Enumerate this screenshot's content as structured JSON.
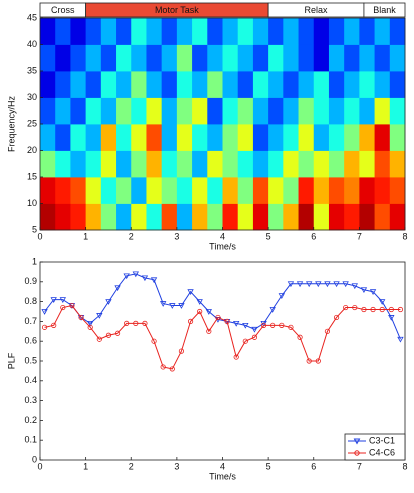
{
  "chart_data": [
    {
      "type": "heatmap",
      "xlabel": "Time/s",
      "ylabel": "Frequency/Hz",
      "xlim": [
        0,
        8
      ],
      "ylim": [
        5,
        45
      ],
      "xticks": [
        0,
        1,
        2,
        3,
        4,
        5,
        6,
        7,
        8
      ],
      "yticks": [
        5,
        10,
        15,
        20,
        25,
        30,
        35,
        40,
        45
      ],
      "segments": [
        {
          "label": "Cross",
          "start": 0,
          "end": 1,
          "color": "#ffffff"
        },
        {
          "label": "Motor Task",
          "start": 1,
          "end": 5,
          "color": "#ea4a33"
        },
        {
          "label": "Relax",
          "start": 5,
          "end": 7.1,
          "color": "#ffffff"
        },
        {
          "label": "Blank",
          "start": 7.1,
          "end": 8,
          "color": "#ffffff"
        }
      ],
      "z": [
        [
          0.95,
          0.9,
          0.85,
          0.7,
          0.5,
          0.3,
          0.6,
          0.4,
          0.8,
          0.3,
          0.7,
          0.5,
          0.85,
          0.6,
          0.9,
          0.5,
          0.7,
          0.95,
          0.6,
          0.9,
          0.85,
          0.95,
          0.8,
          0.9
        ],
        [
          0.9,
          0.85,
          0.8,
          0.6,
          0.4,
          0.5,
          0.3,
          0.6,
          0.5,
          0.4,
          0.6,
          0.4,
          0.7,
          0.5,
          0.8,
          0.6,
          0.5,
          0.85,
          0.7,
          0.8,
          0.75,
          0.9,
          0.85,
          0.8
        ],
        [
          0.5,
          0.4,
          0.3,
          0.4,
          0.6,
          0.3,
          0.5,
          0.7,
          0.4,
          0.5,
          0.3,
          0.6,
          0.5,
          0.4,
          0.3,
          0.4,
          0.6,
          0.5,
          0.6,
          0.5,
          0.7,
          0.6,
          0.8,
          0.7
        ],
        [
          0.3,
          0.2,
          0.4,
          0.3,
          0.7,
          0.4,
          0.6,
          0.8,
          0.3,
          0.6,
          0.4,
          0.3,
          0.5,
          0.6,
          0.2,
          0.3,
          0.4,
          0.6,
          0.3,
          0.4,
          0.5,
          0.7,
          0.9,
          0.5
        ],
        [
          0.2,
          0.3,
          0.2,
          0.4,
          0.3,
          0.5,
          0.4,
          0.6,
          0.3,
          0.5,
          0.6,
          0.2,
          0.4,
          0.5,
          0.3,
          0.2,
          0.3,
          0.5,
          0.4,
          0.3,
          0.4,
          0.3,
          0.6,
          0.4
        ],
        [
          0.1,
          0.2,
          0.3,
          0.2,
          0.4,
          0.3,
          0.5,
          0.3,
          0.2,
          0.4,
          0.3,
          0.5,
          0.3,
          0.2,
          0.4,
          0.3,
          0.2,
          0.3,
          0.4,
          0.2,
          0.3,
          0.4,
          0.3,
          0.2
        ],
        [
          0.2,
          0.1,
          0.2,
          0.3,
          0.2,
          0.4,
          0.3,
          0.2,
          0.3,
          0.5,
          0.2,
          0.3,
          0.4,
          0.3,
          0.2,
          0.4,
          0.3,
          0.2,
          0.1,
          0.3,
          0.2,
          0.3,
          0.2,
          0.3
        ],
        [
          0.1,
          0.2,
          0.1,
          0.2,
          0.3,
          0.2,
          0.4,
          0.3,
          0.2,
          0.3,
          0.4,
          0.2,
          0.3,
          0.4,
          0.3,
          0.2,
          0.3,
          0.2,
          0.1,
          0.2,
          0.3,
          0.2,
          0.3,
          0.2
        ]
      ]
    },
    {
      "type": "line",
      "xlabel": "Time/s",
      "ylabel": "PLF",
      "xlim": [
        0,
        8
      ],
      "ylim": [
        0,
        1
      ],
      "xticks": [
        0,
        1,
        2,
        3,
        4,
        5,
        6,
        7,
        8
      ],
      "yticks": [
        0,
        0.1,
        0.2,
        0.3,
        0.4,
        0.5,
        0.6,
        0.7,
        0.8,
        0.9,
        1
      ],
      "legend": "lower right",
      "x": [
        0.1,
        0.3,
        0.5,
        0.7,
        0.9,
        1.1,
        1.3,
        1.5,
        1.7,
        1.9,
        2.1,
        2.3,
        2.5,
        2.7,
        2.9,
        3.1,
        3.3,
        3.5,
        3.7,
        3.9,
        4.1,
        4.3,
        4.5,
        4.7,
        4.9,
        5.1,
        5.3,
        5.5,
        5.7,
        5.9,
        6.1,
        6.3,
        6.5,
        6.7,
        6.9,
        7.1,
        7.3,
        7.5,
        7.7,
        7.9
      ],
      "series": [
        {
          "name": "C3-C1",
          "color": "#1f3fe0",
          "marker": "triangle-down",
          "values": [
            0.75,
            0.81,
            0.81,
            0.78,
            0.72,
            0.69,
            0.73,
            0.8,
            0.87,
            0.93,
            0.94,
            0.92,
            0.91,
            0.79,
            0.78,
            0.78,
            0.85,
            0.8,
            0.75,
            0.71,
            0.7,
            0.69,
            0.68,
            0.66,
            0.69,
            0.76,
            0.83,
            0.89,
            0.89,
            0.89,
            0.89,
            0.89,
            0.89,
            0.89,
            0.88,
            0.86,
            0.85,
            0.8,
            0.72,
            0.61
          ]
        },
        {
          "name": "C4-C6",
          "color": "#e8231f",
          "marker": "circle",
          "values": [
            0.67,
            0.68,
            0.77,
            0.78,
            0.72,
            0.67,
            0.61,
            0.63,
            0.64,
            0.69,
            0.69,
            0.69,
            0.6,
            0.47,
            0.46,
            0.55,
            0.7,
            0.75,
            0.65,
            0.72,
            0.7,
            0.52,
            0.6,
            0.62,
            0.68,
            0.68,
            0.68,
            0.67,
            0.62,
            0.5,
            0.5,
            0.65,
            0.72,
            0.77,
            0.77,
            0.76,
            0.76,
            0.76,
            0.76,
            0.76
          ]
        }
      ]
    }
  ]
}
